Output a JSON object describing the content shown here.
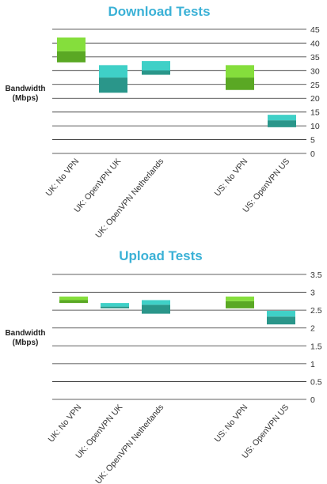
{
  "chart_data": [
    {
      "type": "bar",
      "subtype": "floating-range",
      "title": "Download Tests",
      "ylabel_line1": "Bandwidth",
      "ylabel_line2": "(Mbps)",
      "ylim": [
        0,
        45
      ],
      "yticks": [
        0,
        5,
        10,
        15,
        20,
        25,
        30,
        35,
        40,
        45
      ],
      "y_axis_position": "right",
      "grid": true,
      "categories": [
        "UK: No VPN",
        "UK: OpenVPN UK",
        "UK: OpenVPN Netherlands",
        "US: No VPN",
        "US: OpenVPN US"
      ],
      "series": [
        {
          "values": [
            [
              37,
              42
            ],
            [
              27.5,
              32
            ],
            [
              30,
              33.5
            ],
            [
              27.5,
              32
            ],
            [
              12,
              14
            ]
          ]
        },
        {
          "values": [
            [
              33,
              37
            ],
            [
              22,
              27.5
            ],
            [
              28.5,
              30
            ],
            [
              23,
              27.5
            ],
            [
              9.5,
              12
            ]
          ]
        }
      ],
      "colors": {
        "no_vpn_light": "#85de3c",
        "no_vpn_dark": "#5aa824",
        "vpn_light": "#3fd0c7",
        "vpn_dark": "#2a968a"
      }
    },
    {
      "type": "bar",
      "subtype": "floating-range",
      "title": "Upload Tests",
      "ylabel_line1": "Bandwidth",
      "ylabel_line2": "(Mbps)",
      "ylim": [
        0,
        3.5
      ],
      "yticks": [
        0,
        0.5,
        1,
        1.5,
        2,
        2.5,
        3,
        3.5
      ],
      "y_axis_position": "right",
      "grid": true,
      "categories": [
        "UK: No VPN",
        "UK: OpenVPN UK",
        "UK: OpenVPN Netherlands",
        "US: No VPN",
        "US: OpenVPN US"
      ],
      "series": [
        {
          "values": [
            [
              2.78,
              2.88
            ],
            [
              2.6,
              2.7
            ],
            [
              2.65,
              2.78
            ],
            [
              2.75,
              2.88
            ],
            [
              2.32,
              2.48
            ]
          ]
        },
        {
          "values": [
            [
              2.7,
              2.78
            ],
            [
              2.55,
              2.6
            ],
            [
              2.4,
              2.65
            ],
            [
              2.55,
              2.75
            ],
            [
              2.1,
              2.32
            ]
          ]
        }
      ],
      "colors": {
        "no_vpn_light": "#85de3c",
        "no_vpn_dark": "#5aa824",
        "vpn_light": "#3fd0c7",
        "vpn_dark": "#2a968a"
      }
    }
  ]
}
